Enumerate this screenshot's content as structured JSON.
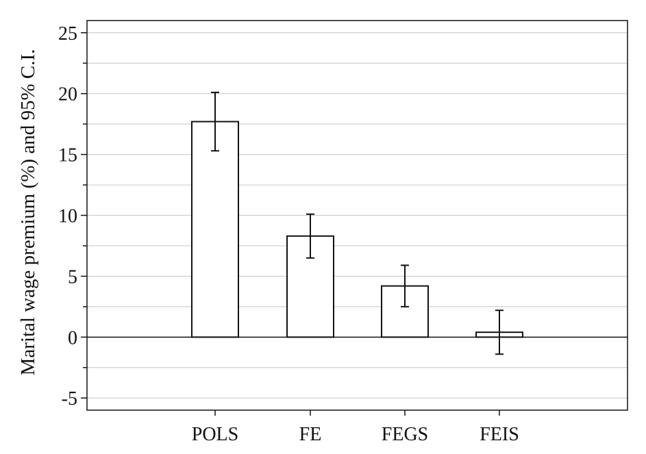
{
  "chart_data": {
    "type": "bar",
    "categories": [
      "POLS",
      "FE",
      "FEGS",
      "FEIS"
    ],
    "values": [
      17.7,
      8.3,
      4.2,
      0.4
    ],
    "ci_low": [
      15.3,
      6.5,
      2.5,
      -1.4
    ],
    "ci_high": [
      20.1,
      10.1,
      5.9,
      2.2
    ],
    "title": "",
    "xlabel": "",
    "ylabel": "Marital wage premium (%) and 95% C.I.",
    "ylim": [
      -6,
      26
    ],
    "yticks": [
      -5,
      0,
      5,
      10,
      15,
      20,
      25
    ],
    "ytick_labels": [
      "-5",
      "0",
      "5",
      "10",
      "15",
      "20",
      "25"
    ],
    "grid": true,
    "legend": "none",
    "colors": {
      "bar_fill": "#ffffff",
      "bar_stroke": "#111111",
      "grid": "#cfcfcf",
      "axis": "#111111"
    }
  }
}
